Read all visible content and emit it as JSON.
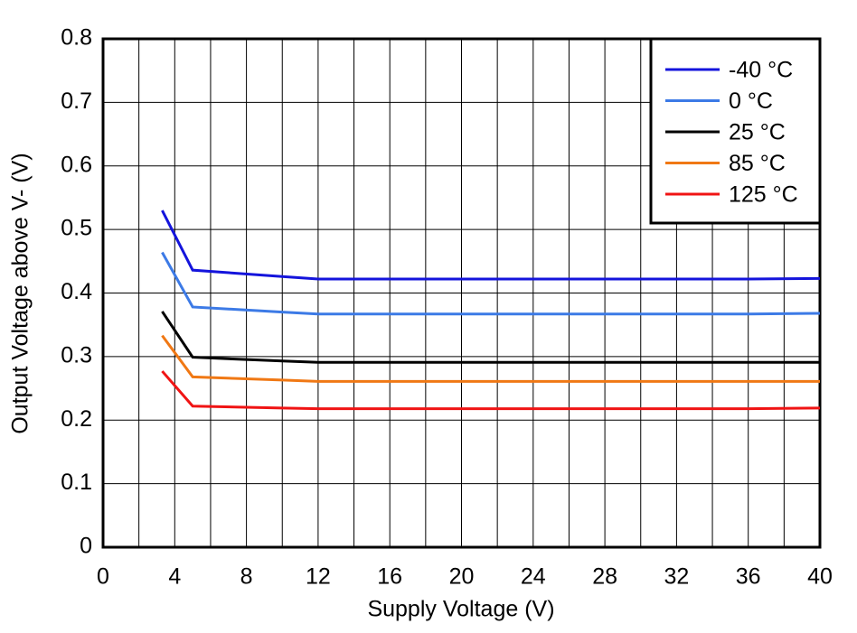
{
  "chart_data": {
    "type": "line",
    "xlabel": "Supply Voltage (V)",
    "ylabel": "Output Voltage above V- (V)",
    "x": [
      3.3,
      5,
      10,
      12,
      36,
      40
    ],
    "series": [
      {
        "name": "-40 °C",
        "color": "#1414dc",
        "values": [
          0.53,
          0.436,
          0.426,
          0.422,
          0.422,
          0.423
        ]
      },
      {
        "name": "0 °C",
        "color": "#3c7ae6",
        "values": [
          0.464,
          0.378,
          0.37,
          0.367,
          0.367,
          0.368
        ]
      },
      {
        "name": "25 °C",
        "color": "#000000",
        "values": [
          0.371,
          0.299,
          0.293,
          0.291,
          0.291,
          0.291
        ]
      },
      {
        "name": "85 °C",
        "color": "#f07814",
        "values": [
          0.333,
          0.268,
          0.263,
          0.261,
          0.261,
          0.261
        ]
      },
      {
        "name": "125 °C",
        "color": "#f01414",
        "values": [
          0.277,
          0.222,
          0.219,
          0.218,
          0.218,
          0.219
        ]
      }
    ],
    "xlim": [
      0,
      40
    ],
    "xticks": [
      0,
      4,
      8,
      12,
      16,
      20,
      24,
      28,
      32,
      36,
      40
    ],
    "xgrid": [
      2,
      6,
      10,
      14,
      18,
      22,
      26,
      30,
      34,
      38
    ],
    "ylim": [
      0,
      0.8
    ],
    "yticks": [
      0,
      0.1,
      0.2,
      0.3,
      0.4,
      0.5,
      0.6,
      0.7,
      0.8
    ],
    "grid": true,
    "legend": "upper right"
  }
}
